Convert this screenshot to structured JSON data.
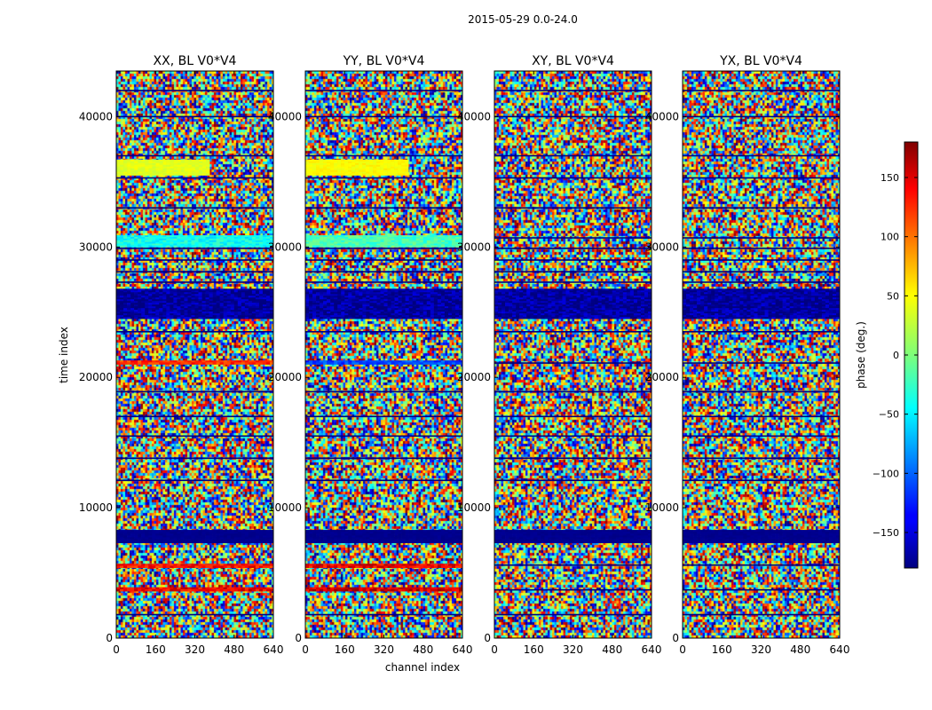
{
  "figure": {
    "suptitle": "2015-05-29 0.0-24.0",
    "xlabel": "channel index",
    "ylabel": "time index",
    "colorbar_label": "phase (deg.)"
  },
  "chart_data": {
    "type": "heatmap",
    "colormap": "jet",
    "color_range": [
      -180,
      180
    ],
    "xlim": [
      0,
      640
    ],
    "ylim": [
      0,
      43500
    ],
    "xticks": [
      "0",
      "160",
      "320",
      "480",
      "640"
    ],
    "xtick_values": [
      0,
      160,
      320,
      480,
      640
    ],
    "yticks": [
      "0",
      "10000",
      "20000",
      "30000",
      "40000"
    ],
    "ytick_values": [
      0,
      10000,
      20000,
      30000,
      40000
    ],
    "colorbar_ticks": [
      "150",
      "100",
      "50",
      "0",
      "−50",
      "−100",
      "−150"
    ],
    "colorbar_tick_values": [
      150,
      100,
      50,
      0,
      -50,
      -100,
      -150
    ],
    "panels": [
      {
        "title": "XX, BL V0*V4",
        "bands": [
          {
            "y": [
              35500,
              36700
            ],
            "x": [
              0,
              380
            ],
            "phase": 35,
            "noise": 8
          },
          {
            "y": [
              30000,
              30900
            ],
            "x": [
              0,
              640
            ],
            "phase": -40,
            "noise": 20
          },
          {
            "y": [
              24500,
              26800
            ],
            "x": [
              0,
              640
            ],
            "phase": -170,
            "noise": 25
          },
          {
            "y": [
              21000,
              21300
            ],
            "x": [
              0,
              640
            ],
            "phase": 120,
            "noise": 20
          },
          {
            "y": [
              7300,
              8300
            ],
            "x": [
              0,
              640
            ],
            "phase": -175,
            "noise": 3
          },
          {
            "y": [
              5400,
              5700
            ],
            "x": [
              0,
              640
            ],
            "phase": 130,
            "noise": 25
          },
          {
            "y": [
              3600,
              3900
            ],
            "x": [
              0,
              640
            ],
            "phase": 140,
            "noise": 25
          }
        ]
      },
      {
        "title": "YY, BL V0*V4",
        "bands": [
          {
            "y": [
              35500,
              36700
            ],
            "x": [
              0,
              420
            ],
            "phase": 45,
            "noise": 8
          },
          {
            "y": [
              30000,
              30900
            ],
            "x": [
              0,
              640
            ],
            "phase": -20,
            "noise": 20
          },
          {
            "y": [
              24500,
              26800
            ],
            "x": [
              0,
              640
            ],
            "phase": -170,
            "noise": 25
          },
          {
            "y": [
              21000,
              21300
            ],
            "x": [
              0,
              640
            ],
            "phase": -110,
            "noise": 20
          },
          {
            "y": [
              7300,
              8300
            ],
            "x": [
              0,
              640
            ],
            "phase": -175,
            "noise": 3
          },
          {
            "y": [
              5400,
              5700
            ],
            "x": [
              0,
              640
            ],
            "phase": 140,
            "noise": 25
          },
          {
            "y": [
              3600,
              3900
            ],
            "x": [
              0,
              640
            ],
            "phase": 150,
            "noise": 25
          }
        ]
      },
      {
        "title": "XY, BL V0*V4",
        "bands": [
          {
            "y": [
              24500,
              26800
            ],
            "x": [
              0,
              640
            ],
            "phase": -170,
            "noise": 25
          },
          {
            "y": [
              7300,
              8300
            ],
            "x": [
              0,
              640
            ],
            "phase": -175,
            "noise": 3
          }
        ]
      },
      {
        "title": "YX, BL V0*V4",
        "bands": [
          {
            "y": [
              24500,
              26800
            ],
            "x": [
              0,
              640
            ],
            "phase": -170,
            "noise": 25
          },
          {
            "y": [
              7300,
              8300
            ],
            "x": [
              0,
              640
            ],
            "phase": -175,
            "noise": 3
          }
        ]
      }
    ],
    "flag_rows": [
      1800,
      3700,
      5600,
      7400,
      8100,
      12100,
      13800,
      15500,
      17000,
      18900,
      21100,
      23500,
      24700,
      25300,
      25900,
      26600,
      27300,
      28100,
      29000,
      29900,
      30700,
      33000,
      35300,
      37000,
      40000,
      42000
    ]
  }
}
